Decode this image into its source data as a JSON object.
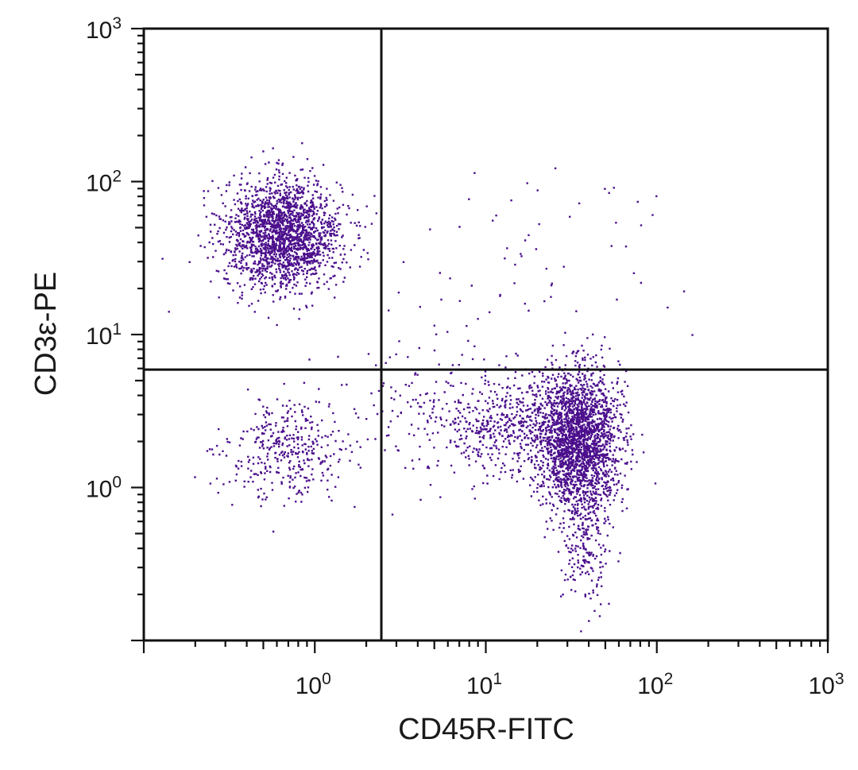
{
  "chart_data": {
    "type": "scatter",
    "xlabel": "CD45R-FITC",
    "ylabel": "CD3ε-PE",
    "x_scale": "log",
    "y_scale": "log",
    "xlim": [
      0.1,
      1000
    ],
    "ylim": [
      0.1,
      1000
    ],
    "x_ticks": [
      1,
      10,
      100,
      1000
    ],
    "y_ticks": [
      1,
      10,
      100,
      1000
    ],
    "x_tick_labels": [
      {
        "base": "10",
        "exp": "0"
      },
      {
        "base": "10",
        "exp": "1"
      },
      {
        "base": "10",
        "exp": "2"
      },
      {
        "base": "10",
        "exp": "3"
      }
    ],
    "y_tick_labels": [
      {
        "base": "10",
        "exp": "0"
      },
      {
        "base": "10",
        "exp": "1"
      },
      {
        "base": "10",
        "exp": "2"
      },
      {
        "base": "10",
        "exp": "3"
      }
    ],
    "quadrant_gate": {
      "x": 2.45,
      "y": 5.9
    },
    "point_color": "#4b0f8c",
    "axis_color": "#111111",
    "populations": [
      {
        "center": [
          0.65,
          45
        ],
        "spread": [
          0.17,
          0.18
        ],
        "count": 2000
      },
      {
        "center": [
          0.7,
          1.7
        ],
        "spread": [
          0.18,
          0.16
        ],
        "count": 380
      },
      {
        "center": [
          35,
          2.1
        ],
        "spread": [
          0.12,
          0.22
        ],
        "count": 2300
      },
      {
        "center": [
          14,
          2.5
        ],
        "spread": [
          0.18,
          0.16
        ],
        "count": 450
      },
      {
        "center": [
          38,
          0.45
        ],
        "spread": [
          0.07,
          0.2
        ],
        "count": 220
      },
      {
        "center": [
          5,
          3
        ],
        "spread": [
          0.3,
          0.25
        ],
        "count": 180
      },
      {
        "center": [
          15,
          25
        ],
        "spread": [
          0.45,
          0.4
        ],
        "count": 70
      }
    ],
    "grid": false,
    "legend": "none"
  }
}
